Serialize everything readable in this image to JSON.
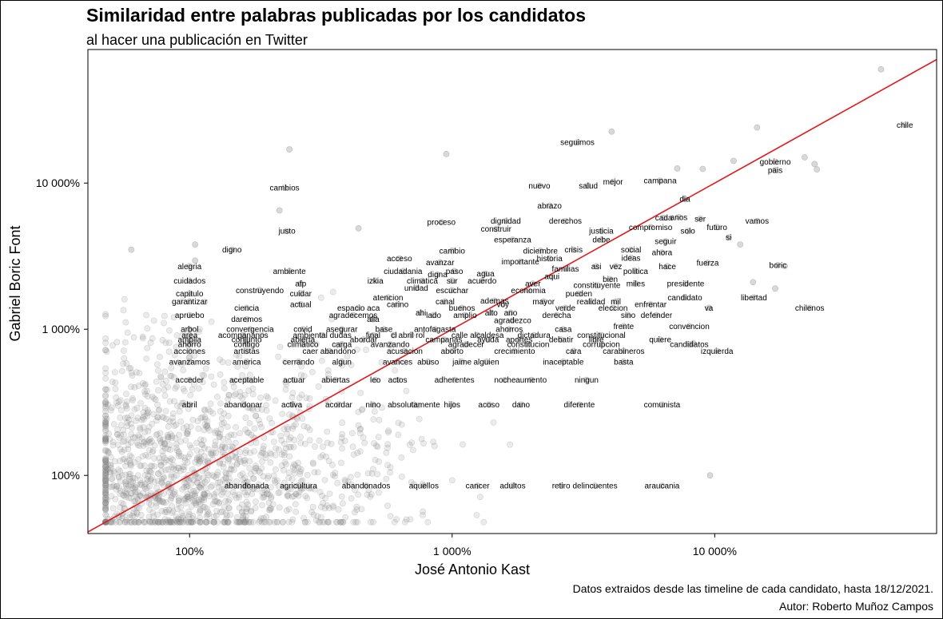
{
  "title": "Similaridad entre palabras publicadas por los candidatos",
  "subtitle": "al hacer una publicación en Twitter",
  "caption_line1": "Datos extraidos desde las timeline de cada candidato, hasta 18/12/2021.",
  "caption_line2": "Autor: Roberto Muñoz Campos",
  "colors": {
    "points": "#808080",
    "reference_line": "#e31a1c",
    "text": "#000000",
    "panel_border": "#000000"
  },
  "chart_data": {
    "type": "scatter",
    "title": "Similaridad entre palabras publicadas por los candidatos",
    "subtitle": "al hacer una publicación en Twitter",
    "xlabel": "José Antonio Kast",
    "ylabel": "Gabriel Boric Font",
    "x_scale": "log",
    "y_scale": "log",
    "xlim": [
      41,
      70000
    ],
    "ylim": [
      40,
      82000
    ],
    "x_ticks": [
      100,
      1000,
      10000
    ],
    "x_tick_labels": [
      "100%",
      "1 000%",
      "10 000%"
    ],
    "y_ticks": [
      100,
      1000,
      10000
    ],
    "y_tick_labels": [
      "100%",
      "1 000%",
      "10 000%"
    ],
    "reference_line": "y = x",
    "grid": false,
    "words": [
      {
        "w": "chile",
        "x": 53000,
        "y": 25000
      },
      {
        "w": "seguimos",
        "x": 3000,
        "y": 19000
      },
      {
        "w": "gobierno",
        "x": 17000,
        "y": 14000
      },
      {
        "w": "pais",
        "x": 17000,
        "y": 12300
      },
      {
        "w": "nuevo",
        "x": 2150,
        "y": 9600
      },
      {
        "w": "salud",
        "x": 3300,
        "y": 9600
      },
      {
        "w": "mejor",
        "x": 4100,
        "y": 10200
      },
      {
        "w": "campana",
        "x": 6200,
        "y": 10400
      },
      {
        "w": "cambios",
        "x": 230,
        "y": 9300
      },
      {
        "w": "dia",
        "x": 7700,
        "y": 7800
      },
      {
        "w": "abrazo",
        "x": 2350,
        "y": 7000
      },
      {
        "w": "cada",
        "x": 6400,
        "y": 5800
      },
      {
        "w": "anos",
        "x": 7300,
        "y": 5850
      },
      {
        "w": "ser",
        "x": 8800,
        "y": 5700
      },
      {
        "w": "vamos",
        "x": 14500,
        "y": 5500
      },
      {
        "w": "proceso",
        "x": 910,
        "y": 5400
      },
      {
        "w": "dignidad",
        "x": 1600,
        "y": 5500
      },
      {
        "w": "derechos",
        "x": 2700,
        "y": 5500
      },
      {
        "w": "construir",
        "x": 1470,
        "y": 4850
      },
      {
        "w": "compromiso",
        "x": 5700,
        "y": 5000
      },
      {
        "w": "futuro",
        "x": 10200,
        "y": 5000
      },
      {
        "w": "justo",
        "x": 235,
        "y": 4700
      },
      {
        "w": "justicia",
        "x": 3700,
        "y": 4700
      },
      {
        "w": "solo",
        "x": 7900,
        "y": 4700
      },
      {
        "w": "si",
        "x": 11300,
        "y": 4250
      },
      {
        "w": "esperanza",
        "x": 1700,
        "y": 4100
      },
      {
        "w": "debe",
        "x": 3700,
        "y": 4100
      },
      {
        "w": "seguir",
        "x": 6500,
        "y": 4000
      },
      {
        "w": "digno",
        "x": 145,
        "y": 3500
      },
      {
        "w": "cambio",
        "x": 1000,
        "y": 3450
      },
      {
        "w": "diciembre",
        "x": 2170,
        "y": 3450
      },
      {
        "w": "crisis",
        "x": 2900,
        "y": 3500
      },
      {
        "w": "social",
        "x": 4800,
        "y": 3500
      },
      {
        "w": "ahora",
        "x": 6300,
        "y": 3350
      },
      {
        "w": "acceso",
        "x": 630,
        "y": 3050
      },
      {
        "w": "historia",
        "x": 2350,
        "y": 3050
      },
      {
        "w": "ideas",
        "x": 4800,
        "y": 3080
      },
      {
        "w": "avanzar",
        "x": 900,
        "y": 2870
      },
      {
        "w": "importante",
        "x": 1820,
        "y": 2900
      },
      {
        "w": "fuerza",
        "x": 9400,
        "y": 2850
      },
      {
        "w": "boric",
        "x": 17400,
        "y": 2750
      },
      {
        "w": "alegria",
        "x": 100,
        "y": 2700
      },
      {
        "w": "asi",
        "x": 3540,
        "y": 2700
      },
      {
        "w": "vez",
        "x": 4200,
        "y": 2700
      },
      {
        "w": "hace",
        "x": 6600,
        "y": 2700
      },
      {
        "w": "ambiente",
        "x": 240,
        "y": 2500
      },
      {
        "w": "ciudadania",
        "x": 650,
        "y": 2500
      },
      {
        "w": "familias",
        "x": 2700,
        "y": 2600
      },
      {
        "w": "politica",
        "x": 5000,
        "y": 2500
      },
      {
        "w": "paso",
        "x": 1020,
        "y": 2500
      },
      {
        "w": "digna",
        "x": 880,
        "y": 2370
      },
      {
        "w": "agua",
        "x": 1340,
        "y": 2400
      },
      {
        "w": "aqui",
        "x": 2400,
        "y": 2300
      },
      {
        "w": "cuidados",
        "x": 100,
        "y": 2150
      },
      {
        "w": "izkia",
        "x": 510,
        "y": 2150
      },
      {
        "w": "climatica",
        "x": 770,
        "y": 2150
      },
      {
        "w": "sur",
        "x": 1000,
        "y": 2150
      },
      {
        "w": "acuerdo",
        "x": 1300,
        "y": 2150
      },
      {
        "w": "bien",
        "x": 4000,
        "y": 2200
      },
      {
        "w": "afp",
        "x": 265,
        "y": 2050
      },
      {
        "w": "aver",
        "x": 2030,
        "y": 2050
      },
      {
        "w": "constituyente",
        "x": 3560,
        "y": 2000
      },
      {
        "w": "miles",
        "x": 5000,
        "y": 2050
      },
      {
        "w": "presidente",
        "x": 7750,
        "y": 2050
      },
      {
        "w": "unidad",
        "x": 730,
        "y": 1920
      },
      {
        "w": "construyendo",
        "x": 185,
        "y": 1850
      },
      {
        "w": "escuchar",
        "x": 1000,
        "y": 1850
      },
      {
        "w": "economia",
        "x": 1950,
        "y": 1850
      },
      {
        "w": "capitulo",
        "x": 100,
        "y": 1750
      },
      {
        "w": "cuidar",
        "x": 265,
        "y": 1760
      },
      {
        "w": "pueden",
        "x": 3040,
        "y": 1750
      },
      {
        "w": "atencion",
        "x": 570,
        "y": 1650
      },
      {
        "w": "candidato",
        "x": 7700,
        "y": 1650
      },
      {
        "w": "libertad",
        "x": 14100,
        "y": 1650
      },
      {
        "w": "garantizar",
        "x": 100,
        "y": 1550
      },
      {
        "w": "canal",
        "x": 940,
        "y": 1550
      },
      {
        "w": "ademas",
        "x": 1450,
        "y": 1570
      },
      {
        "w": "mayor",
        "x": 2230,
        "y": 1550
      },
      {
        "w": "realidad",
        "x": 3380,
        "y": 1550
      },
      {
        "w": "mil",
        "x": 4200,
        "y": 1550
      },
      {
        "w": "actual",
        "x": 265,
        "y": 1480
      },
      {
        "w": "carino",
        "x": 620,
        "y": 1480
      },
      {
        "w": "voy",
        "x": 1560,
        "y": 1480
      },
      {
        "w": "enfrentar",
        "x": 5700,
        "y": 1480
      },
      {
        "w": "ciencia",
        "x": 165,
        "y": 1400
      },
      {
        "w": "espacio aca",
        "x": 440,
        "y": 1400
      },
      {
        "w": "buenos",
        "x": 1090,
        "y": 1400
      },
      {
        "w": "verde",
        "x": 2700,
        "y": 1400
      },
      {
        "w": "eleccion",
        "x": 4100,
        "y": 1400
      },
      {
        "w": "va",
        "x": 9500,
        "y": 1400
      },
      {
        "w": "chilenos",
        "x": 23000,
        "y": 1400
      },
      {
        "w": "ahi",
        "x": 760,
        "y": 1300
      },
      {
        "w": "alto",
        "x": 1410,
        "y": 1300
      },
      {
        "w": "ano",
        "x": 1670,
        "y": 1300
      },
      {
        "w": "apruebo",
        "x": 100,
        "y": 1250
      },
      {
        "w": "agradecemos",
        "x": 420,
        "y": 1250
      },
      {
        "w": "lado",
        "x": 850,
        "y": 1250
      },
      {
        "w": "amplio",
        "x": 1120,
        "y": 1250
      },
      {
        "w": "derecha",
        "x": 2500,
        "y": 1250
      },
      {
        "w": "sino",
        "x": 4680,
        "y": 1250
      },
      {
        "w": "defender",
        "x": 6000,
        "y": 1250
      },
      {
        "w": "daremos",
        "x": 165,
        "y": 1170
      },
      {
        "w": "alla",
        "x": 500,
        "y": 1170
      },
      {
        "w": "agradezco",
        "x": 1700,
        "y": 1150
      },
      {
        "w": "frente",
        "x": 4500,
        "y": 1050
      },
      {
        "w": "convencion",
        "x": 8000,
        "y": 1050
      },
      {
        "w": "arbol",
        "x": 100,
        "y": 1000
      },
      {
        "w": "convergencia",
        "x": 170,
        "y": 1000
      },
      {
        "w": "covid",
        "x": 270,
        "y": 1000
      },
      {
        "w": "asegurar",
        "x": 380,
        "y": 1000
      },
      {
        "w": "base",
        "x": 550,
        "y": 1000
      },
      {
        "w": "antofagasta",
        "x": 860,
        "y": 1000
      },
      {
        "w": "ahorros",
        "x": 1650,
        "y": 1000
      },
      {
        "w": "casa",
        "x": 2650,
        "y": 1000
      },
      {
        "w": "area",
        "x": 100,
        "y": 910
      },
      {
        "w": "acompananos",
        "x": 160,
        "y": 910
      },
      {
        "w": "ambiental dudas",
        "x": 320,
        "y": 910
      },
      {
        "w": "final",
        "x": 500,
        "y": 910
      },
      {
        "w": "cl",
        "x": 600,
        "y": 910
      },
      {
        "w": "abril rol",
        "x": 700,
        "y": 910
      },
      {
        "w": "calle alcaldesa",
        "x": 1250,
        "y": 910
      },
      {
        "w": "dictadura",
        "x": 2050,
        "y": 910
      },
      {
        "w": "constitucional",
        "x": 3700,
        "y": 910
      },
      {
        "w": "amplia",
        "x": 100,
        "y": 850
      },
      {
        "w": "conjunto",
        "x": 165,
        "y": 850
      },
      {
        "w": "abierta",
        "x": 270,
        "y": 850
      },
      {
        "w": "abordar",
        "x": 460,
        "y": 850
      },
      {
        "w": "campanas",
        "x": 930,
        "y": 850
      },
      {
        "w": "ayuda",
        "x": 1370,
        "y": 850
      },
      {
        "w": "aportes",
        "x": 1800,
        "y": 850
      },
      {
        "w": "debatir",
        "x": 2600,
        "y": 850
      },
      {
        "w": "libre",
        "x": 3540,
        "y": 850
      },
      {
        "w": "quiere",
        "x": 6200,
        "y": 850
      },
      {
        "w": "ahorro",
        "x": 100,
        "y": 790
      },
      {
        "w": "contigo",
        "x": 165,
        "y": 790
      },
      {
        "w": "climatico",
        "x": 270,
        "y": 790
      },
      {
        "w": "carga",
        "x": 380,
        "y": 790
      },
      {
        "w": "avanzando",
        "x": 580,
        "y": 790
      },
      {
        "w": "agradecer",
        "x": 1130,
        "y": 790
      },
      {
        "w": "constitucion",
        "x": 1950,
        "y": 790
      },
      {
        "w": "corrupcion",
        "x": 3700,
        "y": 790
      },
      {
        "w": "candidatos",
        "x": 8000,
        "y": 790
      },
      {
        "w": "acciones",
        "x": 100,
        "y": 710
      },
      {
        "w": "artistas",
        "x": 165,
        "y": 710
      },
      {
        "w": "caer abandono",
        "x": 340,
        "y": 710
      },
      {
        "w": "acusacion",
        "x": 660,
        "y": 710
      },
      {
        "w": "aborto",
        "x": 1000,
        "y": 710
      },
      {
        "w": "crecimiento",
        "x": 1730,
        "y": 710
      },
      {
        "w": "cara",
        "x": 2900,
        "y": 710
      },
      {
        "w": "carabineros",
        "x": 4500,
        "y": 710
      },
      {
        "w": "izquierda",
        "x": 10200,
        "y": 710
      },
      {
        "w": "avanzamos",
        "x": 100,
        "y": 600
      },
      {
        "w": "america",
        "x": 165,
        "y": 600
      },
      {
        "w": "cerrando",
        "x": 260,
        "y": 600
      },
      {
        "w": "algun",
        "x": 380,
        "y": 600
      },
      {
        "w": "avances",
        "x": 620,
        "y": 600
      },
      {
        "w": "abuso",
        "x": 810,
        "y": 600
      },
      {
        "w": "jaime",
        "x": 1090,
        "y": 600
      },
      {
        "w": "alguien",
        "x": 1350,
        "y": 600
      },
      {
        "w": "inaceptable",
        "x": 2650,
        "y": 600
      },
      {
        "w": "basta",
        "x": 4500,
        "y": 600
      },
      {
        "w": "acceder",
        "x": 100,
        "y": 450
      },
      {
        "w": "aceptable",
        "x": 165,
        "y": 450
      },
      {
        "w": "actuar",
        "x": 250,
        "y": 450
      },
      {
        "w": "abiertas",
        "x": 360,
        "y": 450
      },
      {
        "w": "leo",
        "x": 510,
        "y": 450
      },
      {
        "w": "actos",
        "x": 620,
        "y": 450
      },
      {
        "w": "adherentes",
        "x": 1020,
        "y": 450
      },
      {
        "w": "noche",
        "x": 1590,
        "y": 450
      },
      {
        "w": "aumento",
        "x": 2000,
        "y": 450
      },
      {
        "w": "ningun",
        "x": 3250,
        "y": 450
      },
      {
        "w": "abril",
        "x": 100,
        "y": 305
      },
      {
        "w": "abandonar",
        "x": 160,
        "y": 305
      },
      {
        "w": "activa",
        "x": 245,
        "y": 305
      },
      {
        "w": "acordar",
        "x": 370,
        "y": 305
      },
      {
        "w": "nino",
        "x": 500,
        "y": 305
      },
      {
        "w": "absolutamente",
        "x": 715,
        "y": 305
      },
      {
        "w": "hijos",
        "x": 1000,
        "y": 305
      },
      {
        "w": "acoso",
        "x": 1380,
        "y": 305
      },
      {
        "w": "dano",
        "x": 1830,
        "y": 305
      },
      {
        "w": "diferente",
        "x": 3050,
        "y": 305
      },
      {
        "w": "comunista",
        "x": 6300,
        "y": 305
      },
      {
        "w": "abandonada",
        "x": 165,
        "y": 85
      },
      {
        "w": "agricultura",
        "x": 260,
        "y": 85
      },
      {
        "w": "abandonados",
        "x": 470,
        "y": 85
      },
      {
        "w": "aquellos",
        "x": 780,
        "y": 85
      },
      {
        "w": "cancer",
        "x": 1250,
        "y": 85
      },
      {
        "w": "adultos",
        "x": 1700,
        "y": 85
      },
      {
        "w": "retiro",
        "x": 2600,
        "y": 85
      },
      {
        "w": "delincuentes",
        "x": 3500,
        "y": 85
      },
      {
        "w": "araucania",
        "x": 6300,
        "y": 85
      }
    ],
    "extra_points": [
      [
        43000,
        60000
      ],
      [
        14500,
        24000
      ],
      [
        24000,
        13500
      ],
      [
        24500,
        12400
      ],
      [
        22000,
        15000
      ],
      [
        11800,
        14200
      ],
      [
        9000,
        12500
      ],
      [
        4050,
        22500
      ],
      [
        7200,
        12600
      ],
      [
        240,
        17000
      ],
      [
        950,
        15800
      ],
      [
        220,
        6500
      ],
      [
        440,
        4900
      ],
      [
        60,
        3500
      ],
      [
        105,
        3800
      ],
      [
        105,
        2950
      ],
      [
        12500,
        3800
      ],
      [
        18500,
        2700
      ],
      [
        17000,
        1900
      ],
      [
        14000,
        2100
      ],
      [
        8300,
        800
      ],
      [
        9600,
        100
      ]
    ]
  }
}
